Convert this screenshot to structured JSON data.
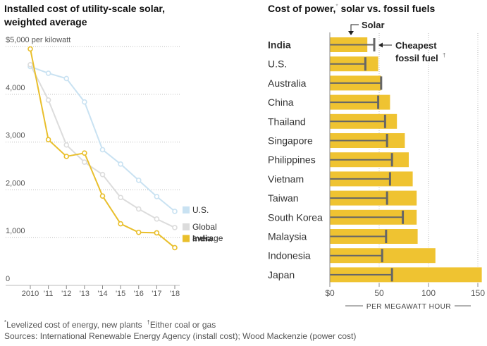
{
  "left_chart": {
    "title": "Installed cost of utility-scale solar, weighted average",
    "title_line1": "Installed cost of utility-scale solar,",
    "title_line2": "weighted average"
  },
  "right_chart": {
    "title": "Cost of power,",
    "title_mark": "*",
    "title_rest": " solar vs. fossil fuels",
    "annotation_solar": "Solar",
    "annotation_fossil_line1": "Cheapest",
    "annotation_fossil_line2": "fossil fuel",
    "annotation_fossil_mark": "†"
  },
  "footnotes": {
    "line1_mark1": "*",
    "line1_text1": "Levelized cost of energy, new plants",
    "line1_mark2": "†",
    "line1_text2": "Either coal or gas",
    "line2": "Sources: International Renewable Energy Agency (install cost); Wood Mackenzie (power cost)"
  },
  "colors": {
    "us": "#c9e2f2",
    "global": "#dcdcdc",
    "india": "#e9bf2c",
    "bar": "#efc331",
    "marker": "#666666",
    "grid": "#bbbbbb"
  },
  "chart_data": [
    {
      "type": "line",
      "title": "Installed cost of utility-scale solar, weighted average",
      "xlabel": "",
      "ylabel": "",
      "y_unit_label": "$5,000 per kilowatt",
      "x": [
        2010,
        2011,
        2012,
        2013,
        2014,
        2015,
        2016,
        2017,
        2018
      ],
      "x_tick_labels": [
        "2010",
        "'11",
        "'12",
        "'13",
        "'14",
        "'15",
        "'16",
        "'17",
        "'18"
      ],
      "y_ticks": [
        0,
        1000,
        2000,
        3000,
        4000,
        5000
      ],
      "y_tick_labels": [
        "0",
        "1,000",
        "2,000",
        "3,000",
        "4,000",
        "$5,000 per kilowatt"
      ],
      "ylim": [
        0,
        5000
      ],
      "grid": true,
      "legend_position": "right",
      "series": [
        {
          "name": "U.S.",
          "color": "#c9e2f2",
          "values": [
            4580,
            4440,
            4330,
            3840,
            2840,
            2540,
            2200,
            1860,
            1550
          ]
        },
        {
          "name": "Global average",
          "legend_line1": "Global",
          "legend_line2": "average",
          "color": "#dcdcdc",
          "values": [
            4620,
            3880,
            2940,
            2580,
            2320,
            1840,
            1600,
            1390,
            1210
          ]
        },
        {
          "name": "India",
          "color": "#e9bf2c",
          "values": [
            4950,
            3050,
            2700,
            2770,
            1870,
            1290,
            1110,
            1100,
            790
          ]
        }
      ]
    },
    {
      "type": "bar",
      "orientation": "horizontal",
      "title": "Cost of power, solar vs. fossil fuels",
      "xlabel": "PER MEGAWATT HOUR",
      "xlim": [
        0,
        150
      ],
      "x_ticks": [
        0,
        50,
        100,
        150
      ],
      "x_tick_labels": [
        "$0",
        "50",
        "100",
        "150"
      ],
      "categories": [
        "India",
        "U.S.",
        "Australia",
        "China",
        "Thailand",
        "Singapore",
        "Philippines",
        "Vietnam",
        "Taiwan",
        "South Korea",
        "Malaysia",
        "Indonesia",
        "Japan"
      ],
      "series": [
        {
          "name": "Solar",
          "values": [
            38,
            49,
            52,
            61,
            68,
            76,
            80,
            84,
            88,
            88,
            89,
            107,
            154
          ]
        },
        {
          "name": "Cheapest fossil fuel",
          "values": [
            45,
            36,
            52,
            49,
            56,
            58,
            63,
            61,
            58,
            74,
            57,
            53,
            63
          ]
        }
      ]
    }
  ]
}
